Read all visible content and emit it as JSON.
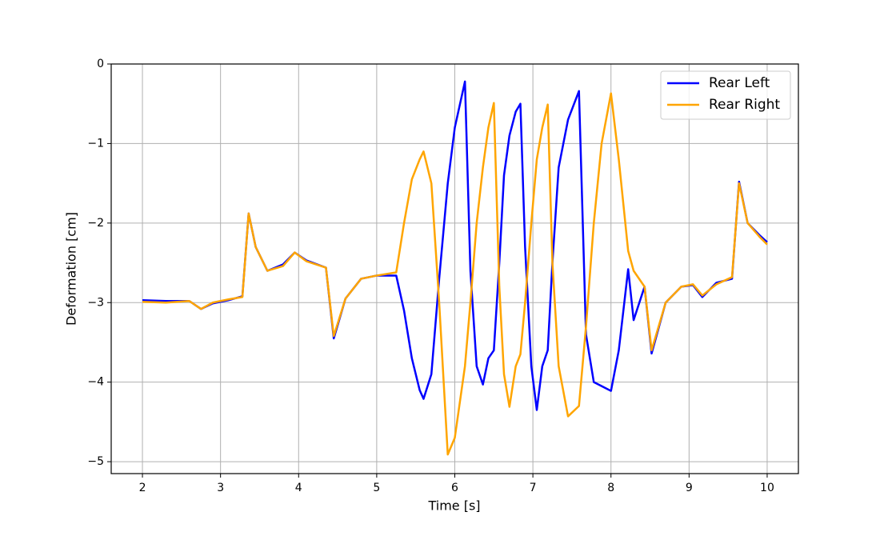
{
  "chart_data": {
    "type": "line",
    "x_label": "Time [s]",
    "y_label": "Deformation [cm]",
    "x": [
      2.0,
      2.3,
      2.6,
      2.75,
      2.9,
      3.1,
      3.28,
      3.36,
      3.45,
      3.6,
      3.8,
      3.95,
      4.1,
      4.35,
      4.45,
      4.6,
      4.8,
      5.0,
      5.25,
      5.35,
      5.45,
      5.55,
      5.6,
      5.7,
      5.8,
      5.91,
      6.0,
      6.13,
      6.2,
      6.28,
      6.36,
      6.43,
      6.5,
      6.57,
      6.63,
      6.7,
      6.78,
      6.84,
      6.9,
      6.98,
      7.05,
      7.12,
      7.19,
      7.25,
      7.33,
      7.45,
      7.59,
      7.68,
      7.78,
      7.88,
      8.0,
      8.1,
      8.22,
      8.29,
      8.43,
      8.52,
      8.7,
      8.9,
      9.05,
      9.17,
      9.35,
      9.55,
      9.64,
      9.75,
      9.9,
      10.0
    ],
    "series": [
      {
        "name": "Rear Left",
        "color": "#0000ff",
        "values": [
          -2.97,
          -2.98,
          -2.98,
          -3.08,
          -3.01,
          -2.97,
          -2.92,
          -1.88,
          -2.3,
          -2.6,
          -2.52,
          -2.37,
          -2.47,
          -2.56,
          -3.45,
          -2.95,
          -2.7,
          -2.66,
          -2.66,
          -3.1,
          -3.7,
          -4.1,
          -4.21,
          -3.9,
          -2.7,
          -1.5,
          -0.8,
          -0.22,
          -2.6,
          -3.8,
          -4.03,
          -3.7,
          -3.6,
          -2.5,
          -1.4,
          -0.9,
          -0.6,
          -0.5,
          -2.3,
          -3.8,
          -4.35,
          -3.8,
          -3.6,
          -2.5,
          -1.3,
          -0.7,
          -0.34,
          -3.4,
          -4.0,
          -4.05,
          -4.11,
          -3.6,
          -2.58,
          -3.22,
          -2.8,
          -3.64,
          -3.0,
          -2.8,
          -2.78,
          -2.93,
          -2.75,
          -2.7,
          -1.48,
          -2.0,
          -2.15,
          -2.24
        ]
      },
      {
        "name": "Rear Right",
        "color": "#ffa500",
        "values": [
          -2.99,
          -3.0,
          -2.98,
          -3.08,
          -3.0,
          -2.96,
          -2.93,
          -1.88,
          -2.3,
          -2.6,
          -2.54,
          -2.37,
          -2.48,
          -2.56,
          -3.42,
          -2.95,
          -2.7,
          -2.66,
          -2.62,
          -2.0,
          -1.45,
          -1.2,
          -1.1,
          -1.5,
          -3.0,
          -4.91,
          -4.7,
          -3.8,
          -3.0,
          -2.0,
          -1.3,
          -0.8,
          -0.49,
          -2.8,
          -3.9,
          -4.31,
          -3.8,
          -3.65,
          -3.0,
          -2.0,
          -1.2,
          -0.8,
          -0.51,
          -2.5,
          -3.8,
          -4.43,
          -4.3,
          -3.3,
          -2.0,
          -1.0,
          -0.37,
          -1.2,
          -2.35,
          -2.6,
          -2.8,
          -3.6,
          -3.0,
          -2.8,
          -2.77,
          -2.91,
          -2.77,
          -2.68,
          -1.5,
          -2.0,
          -2.17,
          -2.27
        ]
      }
    ],
    "xlim": [
      1.6,
      10.4
    ],
    "xticks": [
      2,
      3,
      4,
      5,
      6,
      7,
      8,
      9,
      10
    ],
    "ylim": [
      -5.15,
      0
    ],
    "yticks": [
      {
        "value": -5,
        "label": "−5"
      },
      {
        "value": -4,
        "label": "−4"
      },
      {
        "value": -3,
        "label": "−3"
      },
      {
        "value": -2,
        "label": "−2"
      },
      {
        "value": -1,
        "label": "−1"
      },
      0
    ],
    "grid": true,
    "legend": "upper right"
  }
}
